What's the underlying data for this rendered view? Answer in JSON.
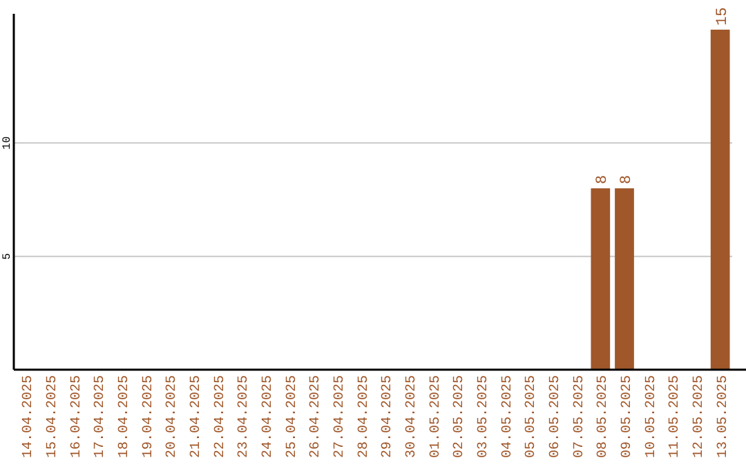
{
  "chart_data": {
    "type": "bar",
    "categories": [
      "14.04.2025",
      "15.04.2025",
      "16.04.2025",
      "17.04.2025",
      "18.04.2025",
      "19.04.2025",
      "20.04.2025",
      "21.04.2025",
      "22.04.2025",
      "23.04.2025",
      "24.04.2025",
      "25.04.2025",
      "26.04.2025",
      "27.04.2025",
      "28.04.2025",
      "29.04.2025",
      "30.04.2025",
      "01.05.2025",
      "02.05.2025",
      "03.05.2025",
      "04.05.2025",
      "05.05.2025",
      "06.05.2025",
      "07.05.2025",
      "08.05.2025",
      "09.05.2025",
      "10.05.2025",
      "11.05.2025",
      "12.05.2025",
      "13.05.2025"
    ],
    "values": [
      0,
      0,
      0,
      0,
      0,
      0,
      0,
      0,
      0,
      0,
      0,
      0,
      0,
      0,
      0,
      0,
      0,
      0,
      0,
      0,
      0,
      0,
      0,
      0,
      8,
      8,
      0,
      0,
      0,
      15
    ],
    "value_labels": [
      null,
      null,
      null,
      null,
      null,
      null,
      null,
      null,
      null,
      null,
      null,
      null,
      null,
      null,
      null,
      null,
      null,
      null,
      null,
      null,
      null,
      null,
      null,
      null,
      "8",
      "8",
      null,
      null,
      null,
      "15"
    ],
    "color": "#a0572a",
    "ylim": [
      0,
      15.7
    ],
    "yticks": [
      5,
      10
    ],
    "grid": "y"
  }
}
